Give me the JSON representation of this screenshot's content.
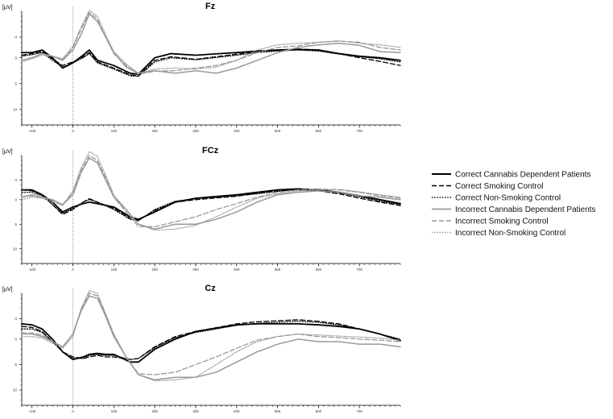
{
  "chart_data": [
    {
      "type": "line",
      "title": "Fz",
      "ylabel": "[µV]",
      "y_ticks": [
        -4,
        0,
        5,
        10
      ],
      "x_ticks": [
        -100,
        0,
        100,
        200,
        300,
        400,
        500,
        600,
        700
      ],
      "xlim": [
        -125,
        800
      ],
      "ylim": [
        -9,
        13
      ],
      "y_inverted": true,
      "grid": false,
      "series": [
        {
          "name": "Correct Cannabis Dependent Patients",
          "x": [
            -125,
            -100,
            -75,
            -50,
            -25,
            0,
            25,
            40,
            60,
            100,
            140,
            160,
            200,
            240,
            300,
            400,
            450,
            500,
            550,
            600,
            650,
            700,
            750,
            800
          ],
          "y": [
            -1,
            -1,
            -1.5,
            0,
            2,
            1,
            -0.5,
            -1.5,
            0.5,
            1.5,
            3,
            3.2,
            0,
            -0.8,
            -0.5,
            -1,
            -1.3,
            -1.5,
            -1.6,
            -1.5,
            -0.8,
            -0.3,
            0,
            0.5
          ]
        },
        {
          "name": "Correct Smoking Control",
          "x": [
            -125,
            -100,
            -75,
            -50,
            -25,
            0,
            25,
            40,
            60,
            100,
            140,
            160,
            200,
            240,
            300,
            400,
            450,
            500,
            550,
            600,
            650,
            700,
            750,
            800
          ],
          "y": [
            -0.5,
            -0.8,
            -1.2,
            0.2,
            1.5,
            0.8,
            -0.2,
            -1,
            0.8,
            2,
            3.3,
            3.5,
            0.5,
            -0.2,
            0.3,
            -0.7,
            -1.2,
            -1.5,
            -1.7,
            -1.5,
            -0.8,
            0,
            0.7,
            1.5
          ]
        },
        {
          "name": "Correct Non-Smoking Control",
          "x": [
            -125,
            -100,
            -75,
            -50,
            -25,
            0,
            25,
            40,
            60,
            100,
            140,
            160,
            200,
            240,
            300,
            400,
            450,
            500,
            550,
            600,
            650,
            700,
            750,
            800
          ],
          "y": [
            -0.3,
            -0.6,
            -1,
            0.5,
            1.8,
            1,
            0,
            -0.8,
            1,
            2.2,
            3.5,
            3.6,
            0.8,
            0,
            0.4,
            -0.5,
            -1,
            -1.3,
            -1.5,
            -1.3,
            -0.7,
            -0.2,
            0.2,
            0.8
          ]
        },
        {
          "name": "Incorrect Cannabis Dependent Patients",
          "x": [
            -125,
            -100,
            -75,
            -50,
            -25,
            0,
            20,
            40,
            60,
            80,
            100,
            130,
            160,
            200,
            250,
            300,
            350,
            400,
            450,
            500,
            550,
            600,
            650,
            700,
            750,
            800
          ],
          "y": [
            0.5,
            0,
            -0.8,
            -0.3,
            0.5,
            -1.5,
            -4.5,
            -8.5,
            -7,
            -4,
            -1,
            1.8,
            3,
            2.5,
            3,
            2.5,
            3,
            2,
            0.5,
            -1,
            -2,
            -2.5,
            -2.8,
            -2.4,
            -1.2,
            -1
          ]
        },
        {
          "name": "Incorrect Smoking Control",
          "x": [
            -125,
            -100,
            -75,
            -50,
            -25,
            0,
            20,
            40,
            60,
            80,
            100,
            130,
            160,
            200,
            250,
            300,
            350,
            400,
            450,
            500,
            550,
            600,
            650,
            700,
            750,
            800
          ],
          "y": [
            0.5,
            0,
            -0.8,
            -0.3,
            0.3,
            -2,
            -5.5,
            -8.8,
            -7.5,
            -4,
            -0.8,
            1.5,
            3.2,
            2.6,
            2.5,
            2,
            1.5,
            0.5,
            -1,
            -2,
            -2.3,
            -3,
            -3.2,
            -3,
            -2,
            -1.5
          ]
        },
        {
          "name": "Incorrect Non-Smoking Control",
          "x": [
            -125,
            -100,
            -75,
            -50,
            -25,
            0,
            20,
            40,
            60,
            80,
            100,
            130,
            160,
            200,
            250,
            300,
            350,
            400,
            450,
            500,
            550,
            600,
            650,
            700,
            750,
            800
          ],
          "y": [
            0.8,
            0.2,
            -0.5,
            -0.3,
            0.2,
            -2.2,
            -6,
            -9.2,
            -8,
            -4.5,
            -1.2,
            1.2,
            3,
            2.2,
            2,
            2.2,
            1.8,
            0.5,
            -1.5,
            -2.5,
            -2.8,
            -3,
            -3.3,
            -2.8,
            -2.5,
            -2
          ]
        }
      ]
    },
    {
      "type": "line",
      "title": "FCz",
      "ylabel": "[µV]",
      "y_ticks": [
        -4,
        0,
        5,
        10
      ],
      "x_ticks": [
        -100,
        0,
        100,
        200,
        300,
        400,
        500,
        600,
        700
      ],
      "xlim": [
        -125,
        800
      ],
      "ylim": [
        -9,
        13
      ],
      "y_inverted": true,
      "grid": false,
      "series": [
        {
          "name": "Correct Cannabis Dependent Patients",
          "x": [
            -125,
            -100,
            -75,
            -50,
            -25,
            0,
            25,
            40,
            60,
            100,
            140,
            160,
            200,
            250,
            300,
            400,
            450,
            500,
            550,
            600,
            650,
            700,
            750,
            800
          ],
          "y": [
            -2,
            -2,
            -1,
            0.5,
            2.5,
            1.5,
            0.8,
            0.5,
            0.8,
            1.5,
            3.5,
            4,
            2.5,
            0.5,
            -0.3,
            -1,
            -1.5,
            -2,
            -2.2,
            -2,
            -1.5,
            -0.8,
            0,
            0.8
          ]
        },
        {
          "name": "Correct Smoking Control",
          "x": [
            -125,
            -100,
            -75,
            -50,
            -25,
            0,
            25,
            40,
            60,
            100,
            140,
            160,
            200,
            250,
            300,
            400,
            450,
            500,
            550,
            600,
            650,
            700,
            750,
            800
          ],
          "y": [
            -2,
            -1.8,
            -1,
            1,
            3,
            2,
            0.5,
            -0.2,
            0.5,
            1.8,
            3.8,
            4.2,
            2.2,
            0.5,
            0,
            -0.7,
            -1.3,
            -1.8,
            -2,
            -1.8,
            -1.2,
            -0.3,
            0.5,
            1.2
          ]
        },
        {
          "name": "Correct Non-Smoking Control",
          "x": [
            -125,
            -100,
            -75,
            -50,
            -25,
            0,
            25,
            40,
            60,
            100,
            140,
            160,
            200,
            250,
            300,
            400,
            450,
            500,
            550,
            600,
            650,
            700,
            750,
            800
          ],
          "y": [
            -1.5,
            -1.5,
            -0.8,
            1,
            2.8,
            1.8,
            0.5,
            0,
            0.5,
            2,
            4,
            4.3,
            2,
            0.3,
            -0.2,
            -0.8,
            -1.2,
            -1.7,
            -2,
            -1.9,
            -1.4,
            -0.6,
            0.3,
            1
          ]
        },
        {
          "name": "Incorrect Cannabis Dependent Patients",
          "x": [
            -125,
            -100,
            -75,
            -50,
            -25,
            0,
            20,
            40,
            60,
            80,
            100,
            130,
            160,
            200,
            250,
            300,
            350,
            400,
            450,
            500,
            550,
            600,
            650,
            700,
            750,
            800
          ],
          "y": [
            -0.5,
            -1,
            -0.5,
            0,
            1,
            -1,
            -5.5,
            -8.5,
            -7.5,
            -4,
            -0.5,
            2,
            5,
            6,
            5,
            5,
            4,
            2.5,
            0.5,
            -1,
            -1.5,
            -1.8,
            -1.5,
            -0.8,
            -0.5,
            0
          ]
        },
        {
          "name": "Incorrect Smoking Control",
          "x": [
            -125,
            -100,
            -75,
            -50,
            -25,
            0,
            20,
            40,
            60,
            80,
            100,
            130,
            160,
            200,
            250,
            300,
            350,
            400,
            450,
            500,
            550,
            600,
            650,
            700,
            750,
            800
          ],
          "y": [
            -0.5,
            -0.8,
            -0.5,
            0.2,
            1,
            -1.5,
            -6,
            -9,
            -8,
            -4.5,
            -0.5,
            2.5,
            5.5,
            5.5,
            4.5,
            3.5,
            2,
            0.8,
            -0.5,
            -1.5,
            -2,
            -2.2,
            -2,
            -1.5,
            -0.8,
            -0.3
          ]
        },
        {
          "name": "Incorrect Non-Smoking Control",
          "x": [
            -125,
            -100,
            -75,
            -50,
            -25,
            0,
            20,
            40,
            60,
            80,
            100,
            130,
            160,
            200,
            250,
            300,
            350,
            400,
            450,
            500,
            550,
            600,
            650,
            700,
            750,
            800
          ],
          "y": [
            0,
            -0.5,
            -0.3,
            0.5,
            1.2,
            -1.8,
            -6.5,
            -9.8,
            -8.8,
            -5,
            -1,
            2,
            5,
            6.2,
            6,
            5.2,
            3.5,
            1.5,
            -0.3,
            -1.2,
            -1.8,
            -2,
            -2.1,
            -1.6,
            -1,
            -0.5
          ]
        }
      ]
    },
    {
      "type": "line",
      "title": "Cz",
      "ylabel": "[µV]",
      "y_ticks": [
        -4,
        0,
        5,
        10
      ],
      "x_ticks": [
        -100,
        0,
        100,
        200,
        300,
        400,
        500,
        600,
        700
      ],
      "xlim": [
        -125,
        800
      ],
      "ylim": [
        -9,
        13
      ],
      "y_inverted": true,
      "grid": false,
      "series": [
        {
          "name": "Correct Cannabis Dependent Patients",
          "x": [
            -125,
            -100,
            -75,
            -50,
            -25,
            0,
            25,
            40,
            60,
            80,
            100,
            140,
            160,
            200,
            250,
            300,
            400,
            450,
            500,
            550,
            600,
            650,
            700,
            750,
            800
          ],
          "y": [
            -3,
            -2.8,
            -2,
            0,
            2.5,
            4,
            3.5,
            3,
            2.8,
            3,
            3,
            4.5,
            4.5,
            2,
            0,
            -1.5,
            -2.8,
            -3,
            -3,
            -3,
            -2.8,
            -2.5,
            -2,
            -1,
            0.3
          ]
        },
        {
          "name": "Correct Smoking Control",
          "x": [
            -125,
            -100,
            -75,
            -50,
            -25,
            0,
            25,
            40,
            60,
            80,
            100,
            140,
            160,
            200,
            250,
            300,
            400,
            450,
            500,
            550,
            600,
            650,
            700,
            750,
            800
          ],
          "y": [
            -2.5,
            -2.3,
            -1.5,
            0.5,
            2.5,
            3.5,
            3.8,
            3.5,
            3.2,
            3.5,
            3.5,
            4,
            3.8,
            1.5,
            -0.5,
            -1.5,
            -3,
            -3.4,
            -3.6,
            -3.8,
            -3.5,
            -3,
            -2,
            -1,
            0.2
          ]
        },
        {
          "name": "Correct Non-Smoking Control",
          "x": [
            -125,
            -100,
            -75,
            -50,
            -25,
            0,
            25,
            40,
            60,
            80,
            100,
            140,
            160,
            200,
            250,
            300,
            400,
            450,
            500,
            550,
            600,
            650,
            700,
            750,
            800
          ],
          "y": [
            -2,
            -2,
            -1.3,
            0.5,
            2.5,
            3.8,
            3.8,
            3.2,
            3,
            3.2,
            3.2,
            4,
            3.8,
            1.7,
            -0.3,
            -1.3,
            -2.7,
            -3.1,
            -3.3,
            -3.5,
            -3.3,
            -2.8,
            -2,
            -1,
            0
          ]
        },
        {
          "name": "Incorrect Cannabis Dependent Patients",
          "x": [
            -125,
            -100,
            -75,
            -50,
            -25,
            0,
            20,
            40,
            60,
            80,
            100,
            130,
            160,
            200,
            250,
            300,
            350,
            400,
            450,
            500,
            550,
            600,
            650,
            700,
            750,
            800
          ],
          "y": [
            -1,
            -1,
            -0.5,
            0.5,
            1.5,
            -1,
            -5.5,
            -8.5,
            -8,
            -4.5,
            -0.5,
            3.5,
            7,
            8,
            7.5,
            7.5,
            6.5,
            4.5,
            2.5,
            1,
            0,
            0.5,
            0.5,
            1,
            1,
            1.5
          ]
        },
        {
          "name": "Incorrect Smoking Control",
          "x": [
            -125,
            -100,
            -75,
            -50,
            -25,
            0,
            20,
            40,
            60,
            80,
            100,
            130,
            160,
            200,
            250,
            300,
            350,
            400,
            450,
            500,
            550,
            600,
            650,
            700,
            750,
            800
          ],
          "y": [
            -1.2,
            -1.2,
            -0.8,
            0.5,
            1.5,
            -1,
            -5.8,
            -9,
            -8.5,
            -4.8,
            -0.8,
            3.5,
            6.8,
            7,
            6.5,
            5,
            3.5,
            1.8,
            0.2,
            -0.5,
            -1,
            -0.5,
            -0.3,
            0,
            0.2,
            0.5
          ]
        },
        {
          "name": "Incorrect Non-Smoking Control",
          "x": [
            -125,
            -100,
            -75,
            -50,
            -25,
            0,
            20,
            40,
            60,
            80,
            100,
            130,
            160,
            200,
            250,
            300,
            350,
            400,
            450,
            500,
            550,
            600,
            650,
            700,
            750,
            800
          ],
          "y": [
            -0.5,
            -0.5,
            -0.2,
            0.8,
            1.8,
            -0.5,
            -6,
            -9.5,
            -9,
            -5,
            -1,
            3.5,
            7,
            8.2,
            8,
            7.5,
            5,
            2.5,
            0.5,
            -0.5,
            -1,
            -0.8,
            -0.6,
            -0.4,
            -0.2,
            0.2
          ]
        }
      ]
    }
  ],
  "legend": {
    "entries": [
      {
        "label": "Correct Cannabis Dependent Patients",
        "color": "#000000",
        "style": "solid-thick"
      },
      {
        "label": "Correct Smoking Control",
        "color": "#000000",
        "style": "dashed"
      },
      {
        "label": "Correct Non-Smoking Control",
        "color": "#000000",
        "style": "dotted"
      },
      {
        "label": "Incorrect Cannabis Dependent Patients",
        "color": "#999999",
        "style": "solid"
      },
      {
        "label": "Incorrect Smoking Control",
        "color": "#999999",
        "style": "dashed"
      },
      {
        "label": "Incorrect Non-Smoking Control",
        "color": "#999999",
        "style": "dotted"
      }
    ]
  }
}
